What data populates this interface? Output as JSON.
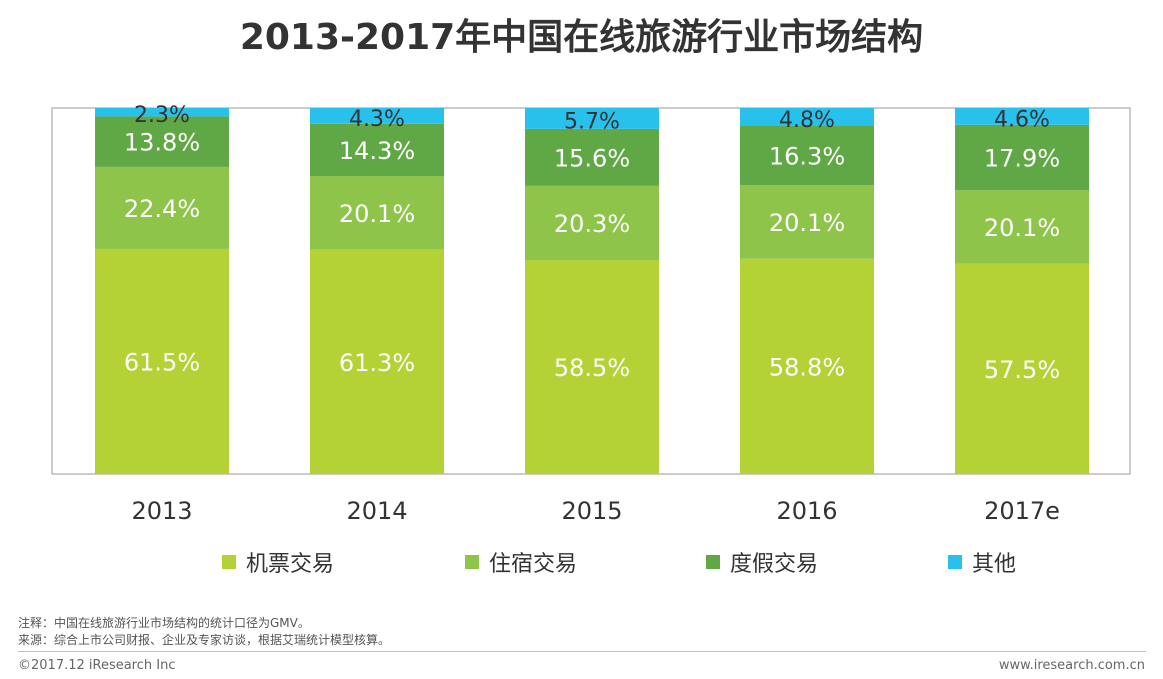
{
  "colors": {
    "机票交易": "#b4d135",
    "住宿交易": "#8dc449",
    "度假交易": "#5fa845",
    "其他": "#27c1ec",
    "frame": "#9a9a9a",
    "label_text": "#ffffff",
    "label_text_top": "#333333"
  },
  "chart_data": {
    "type": "bar",
    "stacked": true,
    "title": "2013-2017年中国在线旅游行业市场结构",
    "categories": [
      "2013",
      "2014",
      "2015",
      "2016",
      "2017e"
    ],
    "series": [
      {
        "name": "机票交易",
        "values": [
          61.5,
          61.3,
          58.5,
          58.8,
          57.5
        ],
        "labels": [
          "61.5%",
          "61.3%",
          "58.5%",
          "58.8%",
          "57.5%"
        ]
      },
      {
        "name": "住宿交易",
        "values": [
          22.4,
          20.1,
          20.3,
          20.1,
          20.1
        ],
        "labels": [
          "22.4%",
          "20.1%",
          "20.3%",
          "20.1%",
          "20.1%"
        ]
      },
      {
        "name": "度假交易",
        "values": [
          13.8,
          14.3,
          15.6,
          16.3,
          17.9
        ],
        "labels": [
          "13.8%",
          "14.3%",
          "15.6%",
          "16.3%",
          "17.9%"
        ]
      },
      {
        "name": "其他",
        "values": [
          2.3,
          4.3,
          5.7,
          4.8,
          4.6
        ],
        "labels": [
          "2.3%",
          "4.3%",
          "5.7%",
          "4.8%",
          "4.6%"
        ]
      }
    ],
    "ylim": [
      0,
      100
    ],
    "xlabel": "",
    "ylabel": "",
    "legend_position": "bottom"
  },
  "notes": {
    "note1": "注释：中国在线旅游行业市场结构的统计口径为GMV。",
    "note2": "来源：综合上市公司财报、企业及专家访谈，根据艾瑞统计模型核算。"
  },
  "footer": {
    "copyright": "©2017.12 iResearch Inc",
    "website": "www.iresearch.com.cn"
  }
}
